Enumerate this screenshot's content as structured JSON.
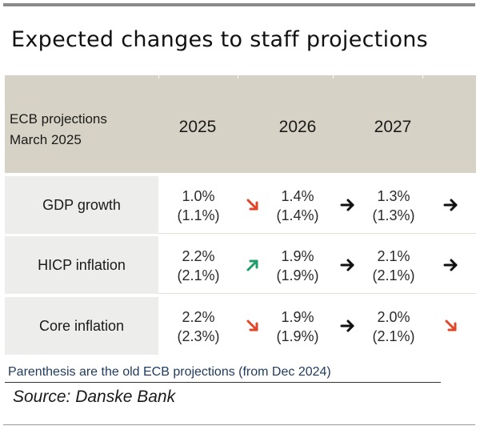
{
  "title": "Expected changes to staff projections",
  "table": {
    "header": {
      "label_line1": "ECB projections",
      "label_line2": "March 2025",
      "years": [
        "2025",
        "2026",
        "2027"
      ]
    },
    "rows": [
      {
        "label": "GDP growth",
        "cells": [
          {
            "new": "1.0%",
            "old": "(1.1%)",
            "direction": "down"
          },
          {
            "new": "1.4%",
            "old": "(1.4%)",
            "direction": "unchanged"
          },
          {
            "new": "1.3%",
            "old": "(1.3%)",
            "direction": "unchanged"
          }
        ]
      },
      {
        "label": "HICP inflation",
        "cells": [
          {
            "new": "2.2%",
            "old": "(2.1%)",
            "direction": "up"
          },
          {
            "new": "1.9%",
            "old": "(1.9%)",
            "direction": "unchanged"
          },
          {
            "new": "2.1%",
            "old": "(2.1%)",
            "direction": "unchanged"
          }
        ]
      },
      {
        "label": "Core inflation",
        "cells": [
          {
            "new": "2.2%",
            "old": "(2.3%)",
            "direction": "down"
          },
          {
            "new": "1.9%",
            "old": "(1.9%)",
            "direction": "unchanged"
          },
          {
            "new": "2.0%",
            "old": "(2.1%)",
            "direction": "down"
          }
        ]
      }
    ]
  },
  "footnote": "Parenthesis are the old ECB projections (from Dec 2024)",
  "source": "Source: Danske Bank",
  "colors": {
    "header_bg": "#d6d2c5",
    "label_bg": "#ededeb",
    "arrow_down": "#e0462a",
    "arrow_up": "#1e9e6a",
    "arrow_flat": "#111111",
    "note_text": "#1e3a5f"
  }
}
